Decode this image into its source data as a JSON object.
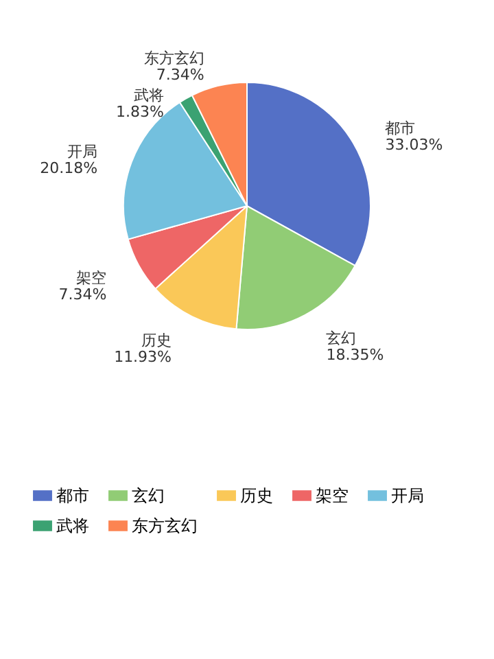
{
  "chart_data": {
    "type": "pie",
    "categories": [
      "都市",
      "玄幻",
      "历史",
      "架空",
      "开局",
      "武将",
      "东方玄幻"
    ],
    "values": [
      33.03,
      18.35,
      11.93,
      7.34,
      20.18,
      1.83,
      7.34
    ],
    "value_labels": [
      "33.03%",
      "18.35%",
      "11.93%",
      "7.34%",
      "20.18%",
      "1.83%",
      "7.34%"
    ],
    "colors": [
      "#5470c6",
      "#91cc75",
      "#fac858",
      "#ee6666",
      "#73c0de",
      "#3ba272",
      "#fc8452"
    ],
    "legend": "bottom"
  }
}
